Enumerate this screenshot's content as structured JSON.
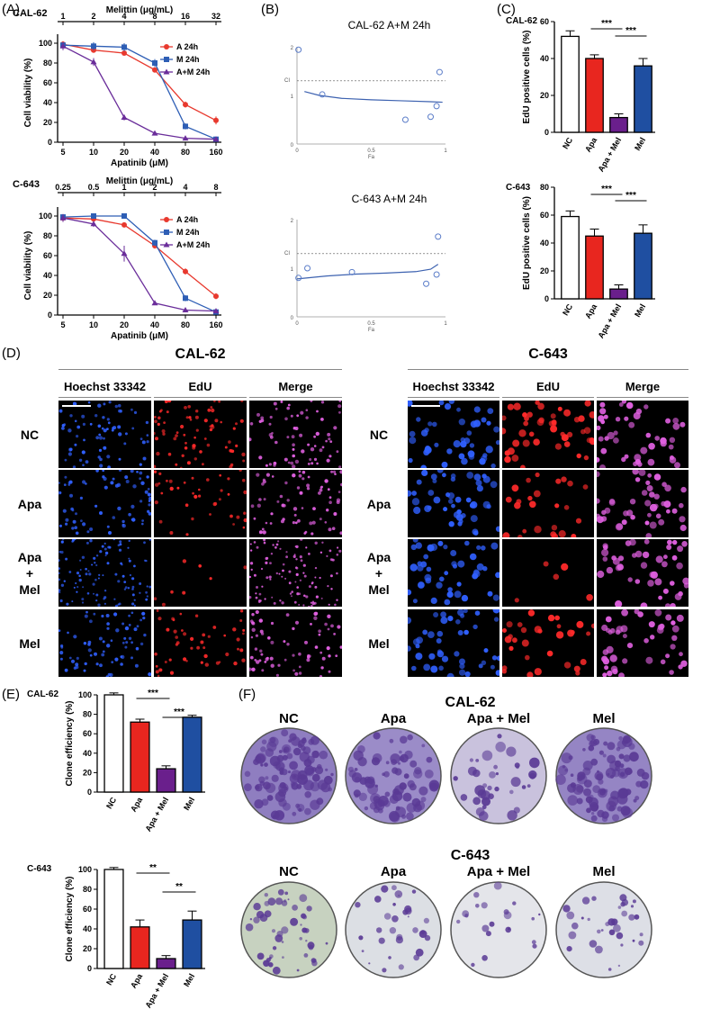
{
  "panels": {
    "A": "(A)",
    "B": "(B)",
    "C": "(C)",
    "D": "(D)",
    "E": "(E)",
    "F": "(F)"
  },
  "colors": {
    "A": "#e8392e",
    "M": "#2e5eb5",
    "AM": "#6a2d9a",
    "NC": "#ffffff",
    "Apa": "#e8261f",
    "ApaMel": "#6a1f8c",
    "Mel": "#1f4fa1",
    "fit": "#3d62b0",
    "pt": "#5a7cc8",
    "hoechst": "#3060ff",
    "edu": "#ff2a2a",
    "merge": "#e060e0",
    "crystal": "#5a3a95"
  },
  "viability": [
    {
      "cell": "CAL-62",
      "xlabel": "Apatinib (μM)",
      "toplabel": "Melittin (μg/mL)",
      "ylabel": "Cell viability (%)",
      "bottom_ticks": [
        "5",
        "10",
        "20",
        "40",
        "80",
        "160"
      ],
      "top_ticks": [
        "1",
        "2",
        "4",
        "8",
        "16",
        "32"
      ],
      "yticks": [
        "0",
        "20",
        "40",
        "60",
        "80",
        "100"
      ],
      "series": [
        {
          "name": "A 24h",
          "values": [
            99,
            93,
            90,
            73,
            38,
            22
          ],
          "err": [
            3,
            2,
            2,
            2,
            3,
            4
          ]
        },
        {
          "name": "M 24h",
          "values": [
            98,
            97,
            96,
            80,
            16,
            3
          ],
          "err": [
            3,
            4,
            4,
            4,
            3,
            1
          ]
        },
        {
          "name": "A+M 24h",
          "values": [
            97,
            81,
            25,
            9,
            4,
            3
          ],
          "err": [
            4,
            4,
            3,
            1,
            2,
            1
          ]
        }
      ]
    },
    {
      "cell": "C-643",
      "xlabel": "Apatinib (μM)",
      "toplabel": "Melittin (μg/mL)",
      "ylabel": "Cell viability (%)",
      "bottom_ticks": [
        "5",
        "10",
        "20",
        "40",
        "80",
        "160"
      ],
      "top_ticks": [
        "0.25",
        "0.5",
        "1",
        "2",
        "4",
        "8"
      ],
      "yticks": [
        "0",
        "20",
        "40",
        "60",
        "80",
        "100"
      ],
      "series": [
        {
          "name": "A 24h",
          "values": [
            98,
            97,
            91,
            70,
            44,
            19
          ],
          "err": [
            3,
            2,
            2,
            3,
            3,
            3
          ]
        },
        {
          "name": "M 24h",
          "values": [
            99,
            100,
            100,
            73,
            17,
            3
          ],
          "err": [
            2,
            2,
            2,
            3,
            3,
            1
          ]
        },
        {
          "name": "A+M 24h",
          "values": [
            98,
            92,
            62,
            12,
            5,
            4
          ],
          "err": [
            4,
            3,
            8,
            2,
            1,
            1
          ]
        }
      ]
    }
  ],
  "ci": [
    {
      "title": "CAL-62 A+M 24h",
      "ylabel": "CI",
      "xlabel": "Fa",
      "xticks": [
        "0",
        "0.5",
        "1"
      ],
      "yticks": [
        "0",
        "1",
        "2"
      ],
      "points": [
        [
          0.01,
          1.94
        ],
        [
          0.17,
          1.02
        ],
        [
          0.73,
          0.5
        ],
        [
          0.9,
          0.56
        ],
        [
          0.94,
          0.78
        ],
        [
          0.96,
          1.48
        ]
      ],
      "fit": [
        [
          0.05,
          1.08
        ],
        [
          0.15,
          1.0
        ],
        [
          0.3,
          0.94
        ],
        [
          0.5,
          0.91
        ],
        [
          0.7,
          0.89
        ],
        [
          0.9,
          0.87
        ],
        [
          0.98,
          0.86
        ]
      ]
    },
    {
      "title": "C-643 A+M 24h",
      "ylabel": "CI",
      "xlabel": "Fa",
      "xticks": [
        "0",
        "0.5",
        "1"
      ],
      "yticks": [
        "0",
        "1",
        "2"
      ],
      "points": [
        [
          0.01,
          0.8
        ],
        [
          0.07,
          1.0
        ],
        [
          0.37,
          0.92
        ],
        [
          0.87,
          0.68
        ],
        [
          0.94,
          0.87
        ],
        [
          0.95,
          1.65
        ]
      ],
      "fit": [
        [
          0.0,
          0.78
        ],
        [
          0.2,
          0.84
        ],
        [
          0.4,
          0.88
        ],
        [
          0.6,
          0.9
        ],
        [
          0.8,
          0.93
        ],
        [
          0.9,
          0.98
        ],
        [
          0.95,
          1.08
        ]
      ]
    }
  ],
  "edu_bars": [
    {
      "cell": "CAL-62",
      "ylabel": "EdU positive cells (%)",
      "ymax": 60,
      "yticks": [
        "0",
        "20",
        "40",
        "60"
      ],
      "categories": [
        "NC",
        "Apa",
        "Apa + Mel",
        "Mel"
      ],
      "values": [
        52,
        40,
        8,
        36
      ],
      "err": [
        3,
        2,
        2,
        4
      ],
      "sig": [
        {
          "from": 1,
          "to": 2,
          "label": "***"
        },
        {
          "from": 2,
          "to": 3,
          "label": "***"
        }
      ]
    },
    {
      "cell": "C-643",
      "ylabel": "EdU positive cells (%)",
      "ymax": 80,
      "yticks": [
        "0",
        "20",
        "40",
        "60",
        "80"
      ],
      "categories": [
        "NC",
        "Apa",
        "Apa + Mel",
        "Mel"
      ],
      "values": [
        59,
        45,
        7,
        47
      ],
      "err": [
        4,
        5,
        3,
        6
      ],
      "sig": [
        {
          "from": 1,
          "to": 2,
          "label": "***"
        },
        {
          "from": 2,
          "to": 3,
          "label": "***"
        }
      ]
    }
  ],
  "microscopy": {
    "columns": [
      "Hoechst 33342",
      "EdU",
      "Merge"
    ],
    "rows": [
      "NC",
      "Apa",
      "Apa\n+\nMel",
      "Mel"
    ],
    "groups": [
      "CAL-62",
      "C-643"
    ]
  },
  "clone_bars": [
    {
      "cell": "CAL-62",
      "ylabel": "Clone efficiency (%)",
      "ymax": 100,
      "yticks": [
        "0",
        "20",
        "40",
        "60",
        "80",
        "100"
      ],
      "categories": [
        "NC",
        "Apa",
        "Apa + Mel",
        "Mel"
      ],
      "values": [
        100,
        72,
        24,
        77
      ],
      "err": [
        2,
        3,
        3,
        2
      ],
      "sig": [
        {
          "from": 1,
          "to": 2,
          "label": "***"
        },
        {
          "from": 2,
          "to": 3,
          "label": "***"
        }
      ]
    },
    {
      "cell": "C-643",
      "ylabel": "Clone efficiency (%)",
      "ymax": 100,
      "yticks": [
        "0",
        "20",
        "40",
        "60",
        "80",
        "100"
      ],
      "categories": [
        "NC",
        "Apa",
        "Apa + Mel",
        "Mel"
      ],
      "values": [
        100,
        42,
        10,
        49
      ],
      "err": [
        2,
        7,
        3,
        9
      ],
      "sig": [
        {
          "from": 1,
          "to": 2,
          "label": "**"
        },
        {
          "from": 2,
          "to": 3,
          "label": "**"
        }
      ]
    }
  ],
  "colony": {
    "groups": [
      {
        "cell": "CAL-62",
        "labels": [
          "NC",
          "Apa",
          "Apa + Mel",
          "Mel"
        ],
        "density": [
          0.85,
          0.65,
          0.3,
          0.8
        ]
      },
      {
        "cell": "C-643",
        "labels": [
          "NC",
          "Apa",
          "Apa + Mel",
          "Mel"
        ],
        "density": [
          0.7,
          0.45,
          0.3,
          0.5
        ]
      }
    ]
  }
}
